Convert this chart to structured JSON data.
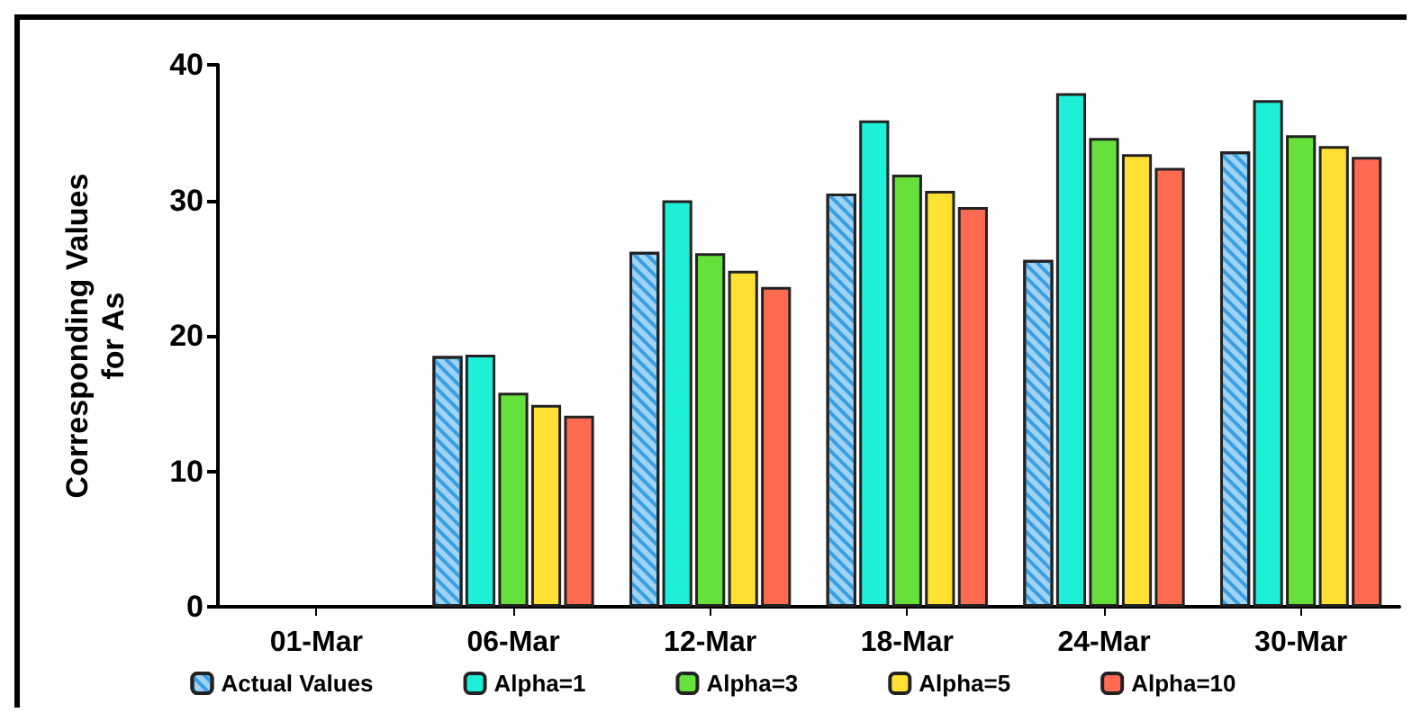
{
  "chart_data": {
    "type": "bar",
    "ylabel": "Corresponding Values\nfor As",
    "categories": [
      "01-Mar",
      "06-Mar",
      "12-Mar",
      "18-Mar",
      "24-Mar",
      "30-Mar"
    ],
    "series": [
      {
        "name": "Actual Values",
        "color": "#9fd3f5",
        "values": [
          null,
          18.5,
          26.2,
          30.5,
          25.6,
          33.6
        ]
      },
      {
        "name": "Alpha=1",
        "color": "#1ef0d8",
        "values": [
          null,
          18.6,
          30.0,
          35.9,
          37.9,
          37.4
        ]
      },
      {
        "name": "Alpha=3",
        "color": "#66e03a",
        "values": [
          null,
          15.8,
          26.1,
          31.9,
          34.6,
          34.8
        ]
      },
      {
        "name": "Alpha=5",
        "color": "#ffe033",
        "values": [
          null,
          14.9,
          24.8,
          30.7,
          33.4,
          34.0
        ]
      },
      {
        "name": "Alpha=10",
        "color": "#ff6a50",
        "values": [
          null,
          14.1,
          23.6,
          29.5,
          32.4,
          33.2
        ]
      }
    ],
    "ylim": [
      0,
      40
    ],
    "yticks": [
      0,
      10,
      20,
      30,
      40
    ],
    "grid": false,
    "legend": "bottom"
  }
}
